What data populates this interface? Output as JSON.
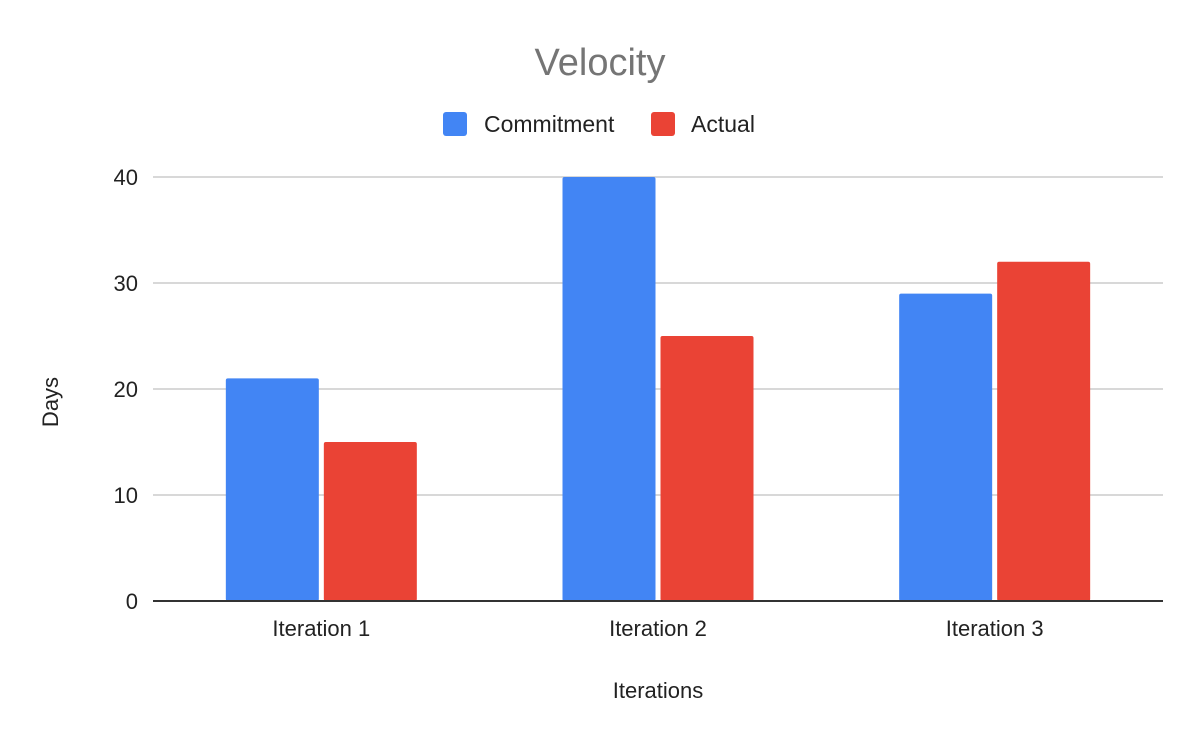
{
  "chart_data": {
    "type": "bar",
    "title": "Velocity",
    "xlabel": "Iterations",
    "ylabel": "Days",
    "categories": [
      "Iteration 1",
      "Iteration 2",
      "Iteration 3"
    ],
    "series": [
      {
        "name": "Commitment",
        "color": "#4285f4",
        "values": [
          21,
          40,
          29
        ]
      },
      {
        "name": "Actual",
        "color": "#ea4335",
        "values": [
          15,
          25,
          32
        ]
      }
    ],
    "ylim": [
      0,
      40
    ],
    "yticks": [
      0,
      10,
      20,
      30,
      40
    ],
    "grid": true,
    "legend_position": "top"
  }
}
